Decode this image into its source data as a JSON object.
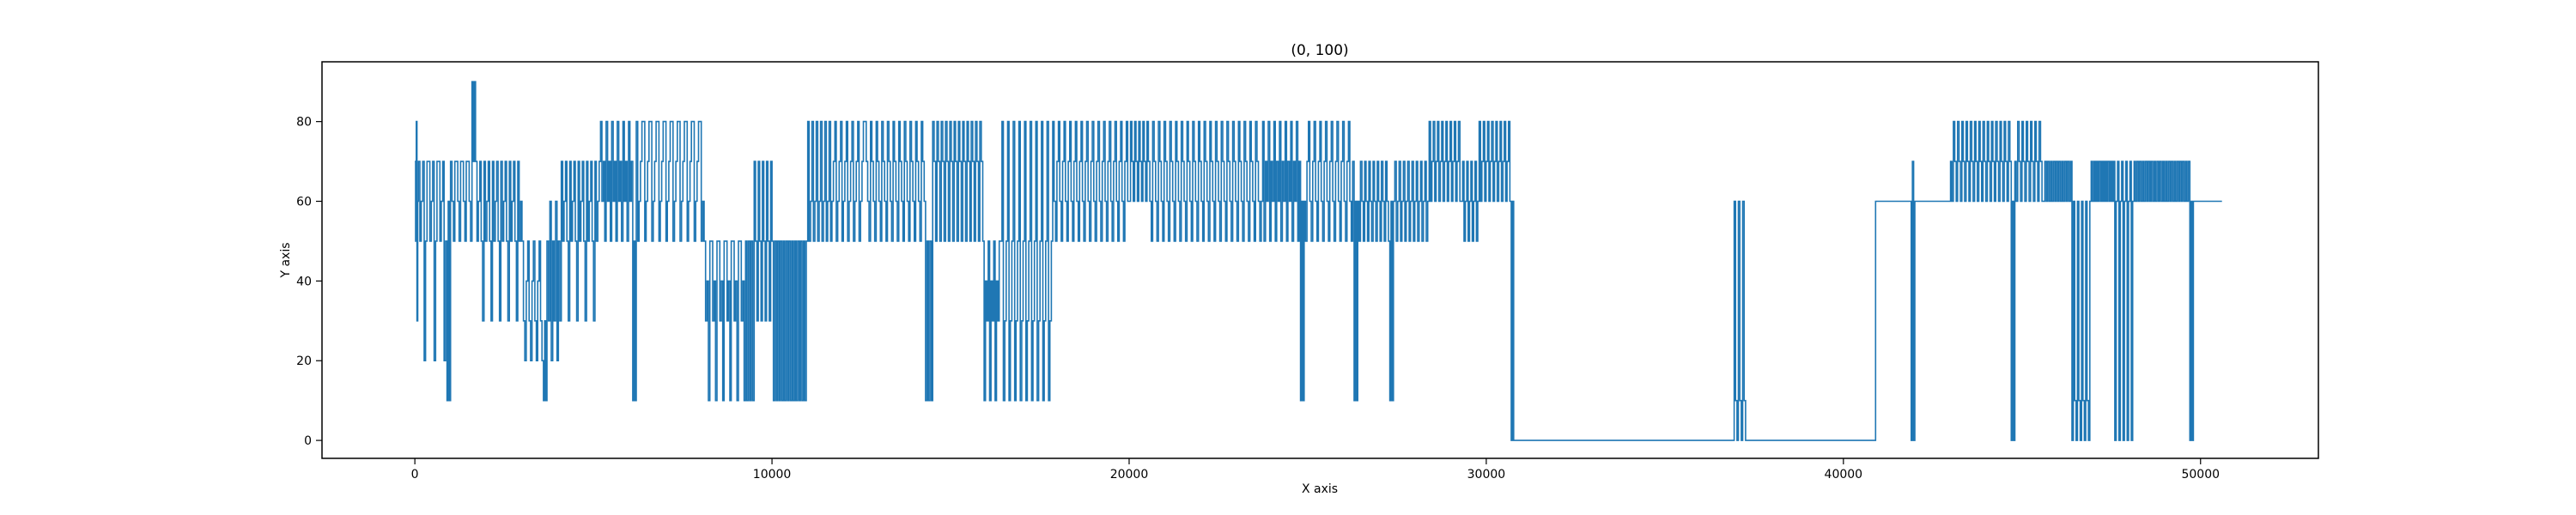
{
  "chart_data": {
    "type": "line",
    "title": "(0, 100)",
    "xlabel": "X axis",
    "ylabel": "Y axis",
    "xlim": [
      -2600,
      53300
    ],
    "ylim": [
      -4.5,
      95
    ],
    "xticks": [
      0,
      10000,
      20000,
      30000,
      40000,
      50000
    ],
    "xtick_labels": [
      "0",
      "10000",
      "20000",
      "30000",
      "40000",
      "50000"
    ],
    "yticks": [
      0,
      20,
      40,
      60,
      80
    ],
    "ytick_labels": [
      "0",
      "20",
      "40",
      "60",
      "80"
    ],
    "grid": false,
    "legend": "none",
    "line_color": "#1f77b4",
    "series": [
      {
        "name": "series",
        "segments": [
          {
            "x0": 0,
            "x1": 100,
            "levels": [
              70,
              50,
              80,
              30,
              60
            ]
          },
          {
            "x0": 100,
            "x1": 900,
            "levels": [
              70,
              50,
              60,
              70,
              20,
              50,
              70
            ]
          },
          {
            "x0": 900,
            "x1": 1000,
            "levels": [
              10,
              60
            ]
          },
          {
            "x0": 1000,
            "x1": 1600,
            "levels": [
              70,
              60,
              50,
              70
            ]
          },
          {
            "x0": 1600,
            "x1": 1700,
            "levels": [
              90,
              70
            ]
          },
          {
            "x0": 1700,
            "x1": 3000,
            "levels": [
              70,
              50,
              60,
              70,
              50,
              30
            ]
          },
          {
            "x0": 3000,
            "x1": 3600,
            "levels": [
              50,
              30,
              20,
              40
            ]
          },
          {
            "x0": 3600,
            "x1": 3700,
            "levels": [
              10,
              30
            ]
          },
          {
            "x0": 3700,
            "x1": 4100,
            "levels": [
              50,
              30,
              60,
              20
            ]
          },
          {
            "x0": 4100,
            "x1": 5200,
            "levels": [
              70,
              50,
              60,
              70,
              50,
              30
            ]
          },
          {
            "x0": 5200,
            "x1": 6100,
            "levels": [
              80,
              60,
              70,
              50
            ]
          },
          {
            "x0": 6100,
            "x1": 6200,
            "levels": [
              10,
              50
            ]
          },
          {
            "x0": 6200,
            "x1": 8100,
            "levels": [
              80,
              50,
              60,
              70,
              80
            ]
          },
          {
            "x0": 8100,
            "x1": 9300,
            "levels": [
              50,
              30,
              40,
              10,
              50
            ]
          },
          {
            "x0": 9300,
            "x1": 9500,
            "levels": [
              10,
              50
            ]
          },
          {
            "x0": 9500,
            "x1": 10000,
            "levels": [
              70,
              50,
              30
            ]
          },
          {
            "x0": 10000,
            "x1": 11000,
            "levels": [
              50,
              10
            ]
          },
          {
            "x0": 11000,
            "x1": 11600,
            "levels": [
              80,
              50,
              60
            ]
          },
          {
            "x0": 11600,
            "x1": 12600,
            "levels": [
              80,
              50,
              60,
              70
            ]
          },
          {
            "x0": 12600,
            "x1": 14300,
            "levels": [
              80,
              70,
              60,
              50
            ]
          },
          {
            "x0": 14300,
            "x1": 14500,
            "levels": [
              10,
              50
            ]
          },
          {
            "x0": 14500,
            "x1": 15900,
            "levels": [
              80,
              70,
              50
            ]
          },
          {
            "x0": 15900,
            "x1": 16400,
            "levels": [
              50,
              10,
              40,
              30
            ]
          },
          {
            "x0": 16400,
            "x1": 17900,
            "levels": [
              50,
              80,
              10,
              30
            ]
          },
          {
            "x0": 17900,
            "x1": 20000,
            "levels": [
              60,
              50,
              70,
              80
            ]
          },
          {
            "x0": 20000,
            "x1": 20500,
            "levels": [
              60,
              80,
              70
            ]
          },
          {
            "x0": 20500,
            "x1": 23700,
            "levels": [
              80,
              70,
              60,
              50
            ]
          },
          {
            "x0": 23700,
            "x1": 24800,
            "levels": [
              60,
              80,
              50,
              70
            ]
          },
          {
            "x0": 24800,
            "x1": 24900,
            "levels": [
              10,
              60
            ]
          },
          {
            "x0": 24900,
            "x1": 26300,
            "levels": [
              60,
              50,
              70,
              80
            ]
          },
          {
            "x0": 26300,
            "x1": 26400,
            "levels": [
              10,
              60
            ]
          },
          {
            "x0": 26400,
            "x1": 27300,
            "levels": [
              60,
              50,
              70
            ]
          },
          {
            "x0": 27300,
            "x1": 27400,
            "levels": [
              10,
              60
            ]
          },
          {
            "x0": 27400,
            "x1": 28400,
            "levels": [
              60,
              70,
              50
            ]
          },
          {
            "x0": 28400,
            "x1": 29300,
            "levels": [
              80,
              60,
              70
            ]
          },
          {
            "x0": 29300,
            "x1": 29800,
            "levels": [
              60,
              70,
              50
            ]
          },
          {
            "x0": 29800,
            "x1": 30700,
            "levels": [
              80,
              60,
              70
            ]
          },
          {
            "x0": 30700,
            "x1": 30800,
            "levels": [
              0,
              60
            ]
          },
          {
            "x0": 30800,
            "x1": 36900,
            "levels": [
              0
            ]
          },
          {
            "x0": 36900,
            "x1": 37300,
            "levels": [
              0,
              60,
              10
            ]
          },
          {
            "x0": 37300,
            "x1": 40900,
            "levels": [
              0
            ]
          },
          {
            "x0": 40900,
            "x1": 41900,
            "levels": [
              60
            ]
          },
          {
            "x0": 41900,
            "x1": 42000,
            "levels": [
              0,
              70
            ]
          },
          {
            "x0": 42000,
            "x1": 43000,
            "levels": [
              60
            ]
          },
          {
            "x0": 43000,
            "x1": 44700,
            "levels": [
              70,
              60,
              80
            ]
          },
          {
            "x0": 44700,
            "x1": 44800,
            "levels": [
              0,
              60
            ]
          },
          {
            "x0": 44800,
            "x1": 45600,
            "levels": [
              70,
              60,
              80
            ]
          },
          {
            "x0": 45600,
            "x1": 46400,
            "levels": [
              60,
              70
            ]
          },
          {
            "x0": 46400,
            "x1": 46900,
            "levels": [
              0,
              60,
              10
            ]
          },
          {
            "x0": 46900,
            "x1": 47600,
            "levels": [
              60,
              70
            ]
          },
          {
            "x0": 47600,
            "x1": 48100,
            "levels": [
              0,
              60,
              70
            ]
          },
          {
            "x0": 48100,
            "x1": 49700,
            "levels": [
              60,
              70
            ]
          },
          {
            "x0": 49700,
            "x1": 49800,
            "levels": [
              0,
              60
            ]
          },
          {
            "x0": 49800,
            "x1": 50600,
            "levels": [
              60
            ]
          }
        ]
      }
    ]
  }
}
